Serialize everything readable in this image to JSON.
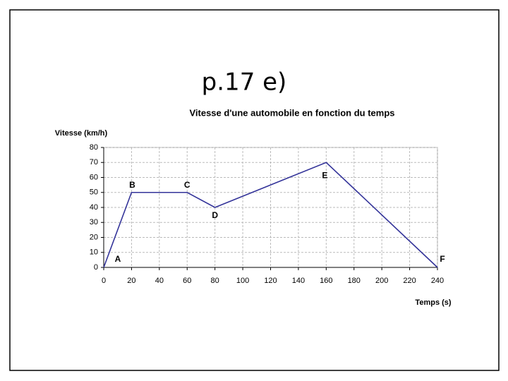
{
  "slide_title": "p.17 e)",
  "chart_data": {
    "type": "line",
    "title": "Vitesse d'une automobile en fonction du temps",
    "y_label": "Vitesse (km/h)",
    "x_label": "Temps (s)",
    "x": [
      0,
      20,
      60,
      80,
      160,
      240
    ],
    "series": [
      {
        "name": "Vitesse",
        "color": "#333399",
        "values": [
          0,
          50,
          50,
          40,
          70,
          0
        ]
      }
    ],
    "annotations": [
      "A",
      "B",
      "C",
      "D",
      "E",
      "F"
    ],
    "xlim": [
      0,
      240
    ],
    "xticks": [
      0,
      20,
      40,
      60,
      80,
      100,
      120,
      140,
      160,
      180,
      200,
      220,
      240
    ],
    "ylim": [
      0,
      80
    ],
    "yticks": [
      0,
      10,
      20,
      30,
      40,
      50,
      60,
      70,
      80
    ],
    "grid": true
  }
}
